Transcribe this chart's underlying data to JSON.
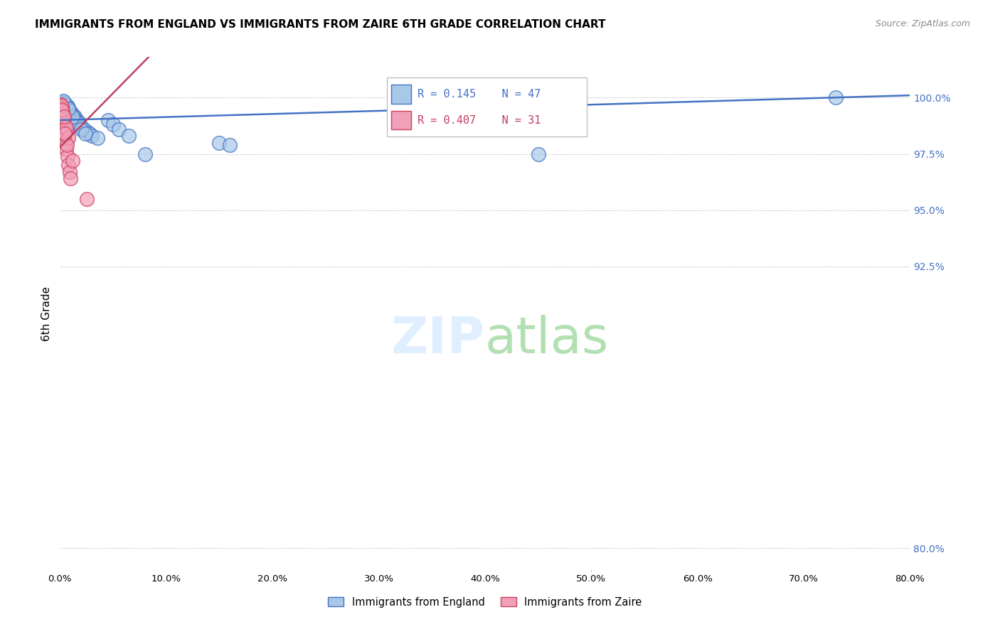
{
  "title": "IMMIGRANTS FROM ENGLAND VS IMMIGRANTS FROM ZAIRE 6TH GRADE CORRELATION CHART",
  "source": "Source: ZipAtlas.com",
  "ylabel": "6th Grade",
  "yticks": [
    80.0,
    92.5,
    95.0,
    97.5,
    100.0
  ],
  "xticks": [
    0,
    10,
    20,
    30,
    40,
    50,
    60,
    70,
    80
  ],
  "xlim": [
    0.0,
    80.0
  ],
  "ylim": [
    79.0,
    101.8
  ],
  "legend1_label": "Immigrants from England",
  "legend2_label": "Immigrants from Zaire",
  "R_england": 0.145,
  "N_england": 47,
  "R_zaire": 0.407,
  "N_zaire": 31,
  "color_england_face": "#a8c8e8",
  "color_england_edge": "#4472c4",
  "color_zaire_face": "#f0a0b8",
  "color_zaire_edge": "#d04060",
  "color_england_line": "#4472c4",
  "color_zaire_line": "#c04060",
  "color_right_labels": "#4472c4",
  "england_x": [
    0.3,
    0.5,
    0.7,
    0.8,
    0.9,
    1.0,
    1.1,
    1.2,
    1.3,
    1.5,
    1.6,
    1.8,
    2.0,
    2.2,
    2.5,
    2.8,
    3.0,
    3.5,
    0.4,
    0.6,
    0.8,
    1.0,
    1.4,
    1.7,
    2.1,
    0.5,
    0.7,
    1.0,
    1.3,
    1.6,
    2.0,
    2.4,
    0.4,
    0.6,
    0.9,
    1.2,
    4.5,
    5.0,
    5.5,
    6.5,
    8.0,
    15.0,
    16.0,
    45.0,
    73.0,
    0.3,
    0.8
  ],
  "england_y": [
    99.8,
    99.7,
    99.6,
    99.5,
    99.4,
    99.3,
    99.3,
    99.2,
    99.1,
    99.0,
    98.9,
    98.8,
    98.7,
    98.6,
    98.5,
    98.4,
    98.3,
    98.2,
    99.65,
    99.55,
    99.45,
    99.35,
    99.15,
    98.95,
    98.65,
    99.7,
    99.6,
    99.35,
    99.1,
    98.9,
    98.6,
    98.4,
    99.75,
    99.65,
    99.4,
    99.15,
    99.0,
    98.8,
    98.6,
    98.3,
    97.5,
    98.0,
    97.9,
    97.5,
    100.0,
    99.85,
    99.5
  ],
  "zaire_x": [
    0.05,
    0.1,
    0.15,
    0.2,
    0.25,
    0.3,
    0.35,
    0.4,
    0.45,
    0.5,
    0.6,
    0.7,
    0.8,
    0.9,
    1.0,
    0.15,
    0.25,
    0.35,
    0.55,
    0.12,
    0.22,
    0.32,
    0.55,
    0.75,
    1.2,
    0.08,
    0.18,
    0.38,
    0.65,
    2.5,
    0.45
  ],
  "zaire_y": [
    99.7,
    99.6,
    99.5,
    99.4,
    99.2,
    99.0,
    98.8,
    98.5,
    98.3,
    98.0,
    97.7,
    97.4,
    97.0,
    96.7,
    96.4,
    99.55,
    99.35,
    99.1,
    98.6,
    99.5,
    99.3,
    99.05,
    98.7,
    98.2,
    97.2,
    99.65,
    99.45,
    99.15,
    97.9,
    95.5,
    98.4
  ],
  "england_trend_x": [
    0.0,
    80.0
  ],
  "england_trend_y": [
    99.0,
    100.1
  ],
  "zaire_trend_x": [
    0.0,
    5.0
  ],
  "zaire_trend_y": [
    97.8,
    100.2
  ]
}
